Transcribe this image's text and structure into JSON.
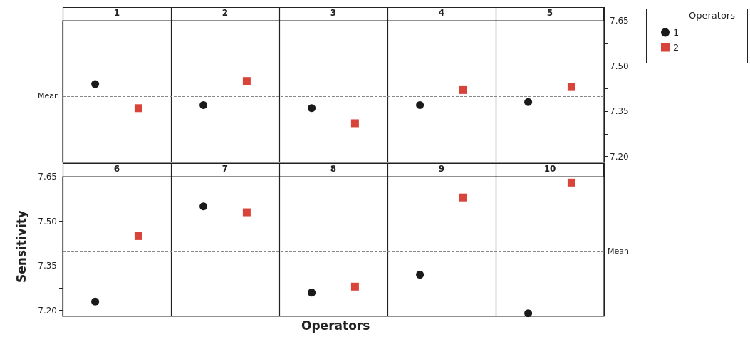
{
  "chart_data": [
    {
      "type": "scatter",
      "categories": [
        "1",
        "2",
        "3",
        "4",
        "5"
      ],
      "grid": "x",
      "y2lim": [
        7.18,
        7.65
      ],
      "y2ticks": [
        {
          "value": 7.2,
          "label": "7.20"
        },
        {
          "value": 7.275,
          "label": null
        },
        7.35,
        {
          "value": 7.425,
          "label": null
        },
        {
          "value": 7.5,
          "label": "7.50"
        },
        {
          "value": 7.575,
          "label": null
        },
        7.65
      ],
      "legend": "right",
      "legend_title": "Operators",
      "ref_lines": [
        {
          "axis": "y2",
          "value": 7.4,
          "label": "Mean",
          "color": "#888888",
          "line_style": "dashed"
        }
      ],
      "series": [
        {
          "name": "1",
          "axis": "y2",
          "color": "#1a1a1a",
          "marker": "circle",
          "values": [
            7.44,
            7.37,
            7.36,
            7.37,
            7.38
          ]
        },
        {
          "name": "2",
          "axis": "y2",
          "color": "#d9443a",
          "marker": "square",
          "values": [
            7.36,
            7.45,
            7.31,
            7.42,
            7.43
          ]
        }
      ]
    },
    {
      "type": "scatter",
      "categories": [
        "6",
        "7",
        "8",
        "9",
        "10"
      ],
      "grid": "x",
      "xlabel": "Operators",
      "ylabel": "Sensitivity",
      "ylim": [
        7.18,
        7.65
      ],
      "yticks": [
        {
          "value": 7.2,
          "label": "7.20"
        },
        {
          "value": 7.275,
          "label": null
        },
        7.35,
        {
          "value": 7.425,
          "label": null
        },
        {
          "value": 7.5,
          "label": "7.50"
        },
        {
          "value": 7.575,
          "label": null
        },
        7.65
      ],
      "ref_lines": [
        {
          "axis": "y",
          "value": 7.4,
          "label": "Mean",
          "color": "#888888",
          "line_style": "dashed"
        }
      ],
      "series": [
        {
          "color": "#1a1a1a",
          "marker": "circle",
          "values": [
            7.23,
            7.55,
            7.26,
            7.32,
            7.19
          ]
        },
        {
          "color": "#d9443a",
          "marker": "square",
          "values": [
            7.45,
            7.53,
            7.28,
            7.58,
            7.63
          ]
        }
      ]
    }
  ]
}
